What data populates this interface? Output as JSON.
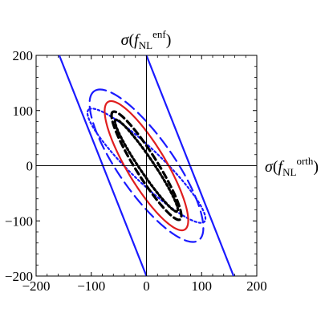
{
  "chart_data": {
    "type": "line",
    "x_axis_label": {
      "symbol": "σ",
      "open": "(",
      "f": "f",
      "sub": "NL",
      "sup": "orth",
      "close": ")"
    },
    "y_axis_label": {
      "symbol": "σ",
      "open": "(",
      "f": "f",
      "sub": "NL",
      "sup": "enf",
      "close": ")"
    },
    "xlim": [
      -200,
      200
    ],
    "ylim": [
      -200,
      200
    ],
    "x_ticks": [
      -200,
      -100,
      0,
      100,
      200
    ],
    "y_ticks": [
      -200,
      -100,
      0,
      100,
      200
    ],
    "x_tick_labels": [
      "−200",
      "−100",
      "0",
      "100",
      "200"
    ],
    "y_tick_labels": [
      "−200",
      "−100",
      "0",
      "100",
      "200"
    ],
    "grid": false,
    "legend": "none",
    "series": [
      {
        "color": "#1a1aff",
        "dash": "solid",
        "shape": "line-pair",
        "segments": [
          [
            [
              -158,
              200
            ],
            [
              0,
              -200
            ]
          ],
          [
            [
              0,
              200
            ],
            [
              158,
              -200
            ]
          ]
        ]
      },
      {
        "color": "#1a1aff",
        "dash": "long-dash",
        "shape": "ellipse",
        "ellipse": {
          "cx": 0,
          "cy": 0,
          "u": 165,
          "v": 50,
          "angle_deg": 125
        }
      },
      {
        "color": "#1a1aff",
        "dash": "dotted",
        "shape": "ellipse",
        "ellipse": {
          "cx": 0,
          "cy": 0,
          "u": 146,
          "v": 29,
          "angle_deg": 136
        }
      },
      {
        "color": "#e01e1e",
        "dash": "solid",
        "shape": "ellipse",
        "ellipse": {
          "cx": 0,
          "cy": 0,
          "u": 135,
          "v": 35,
          "angle_deg": 121
        }
      },
      {
        "color": "#000000",
        "dash": "dashed",
        "shape": "ellipse",
        "ellipse": {
          "cx": 0,
          "cy": 0,
          "u": 115,
          "v": 20,
          "angle_deg": 122
        }
      },
      {
        "color": "#000000",
        "dash": "dotted",
        "shape": "ellipse",
        "ellipse": {
          "cx": 0,
          "cy": 0,
          "u": 100,
          "v": 13,
          "angle_deg": 124
        }
      }
    ]
  }
}
